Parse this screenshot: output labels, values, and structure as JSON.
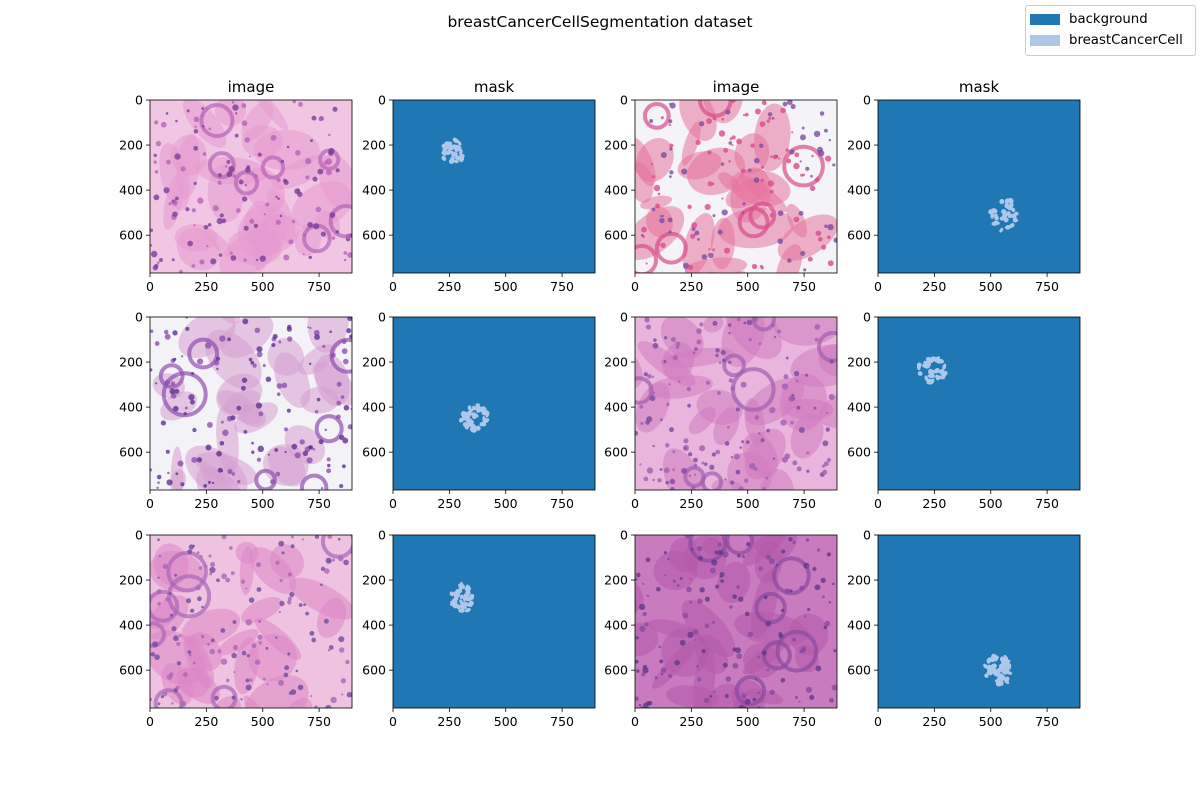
{
  "chart_data": {
    "type": "image-grid",
    "title": "breastCancerCellSegmentation dataset",
    "legend": {
      "position": "top-right",
      "entries": [
        {
          "label": "background",
          "color": "#1f77b4"
        },
        {
          "label": "breastCancerCell",
          "color": "#aec7e8"
        }
      ]
    },
    "axes": {
      "xlim": [
        0,
        896
      ],
      "ylim": [
        768,
        0
      ],
      "xticks": [
        0,
        250,
        500,
        750
      ],
      "yticks": [
        0,
        200,
        400,
        600
      ]
    },
    "grid": {
      "rows": 3,
      "cols": 4,
      "column_titles": [
        "image",
        "mask",
        "image",
        "mask"
      ]
    },
    "panels": [
      {
        "kind": "image",
        "tissue": "tissue-1"
      },
      {
        "kind": "mask",
        "cluster": {
          "cx": 270,
          "cy": 230,
          "rx": 100,
          "ry": 95,
          "n": 34
        }
      },
      {
        "kind": "image",
        "tissue": "tissue-2"
      },
      {
        "kind": "mask",
        "cluster": {
          "cx": 560,
          "cy": 510,
          "rx": 115,
          "ry": 130,
          "n": 30
        }
      },
      {
        "kind": "image",
        "tissue": "tissue-3"
      },
      {
        "kind": "mask",
        "cluster": {
          "cx": 360,
          "cy": 450,
          "rx": 115,
          "ry": 110,
          "n": 40
        }
      },
      {
        "kind": "image",
        "tissue": "tissue-4"
      },
      {
        "kind": "mask",
        "cluster": {
          "cx": 240,
          "cy": 230,
          "rx": 110,
          "ry": 110,
          "n": 30
        }
      },
      {
        "kind": "image",
        "tissue": "tissue-5"
      },
      {
        "kind": "mask",
        "cluster": {
          "cx": 310,
          "cy": 280,
          "rx": 100,
          "ry": 110,
          "n": 38
        }
      },
      {
        "kind": "image",
        "tissue": "tissue-6"
      },
      {
        "kind": "mask",
        "cluster": {
          "cx": 535,
          "cy": 600,
          "rx": 110,
          "ry": 120,
          "n": 60
        }
      }
    ]
  }
}
